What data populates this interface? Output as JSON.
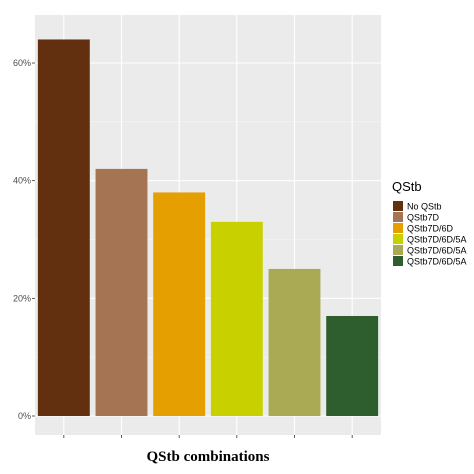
{
  "chart_data": {
    "type": "bar",
    "title": "",
    "xlabel": "QStb combinations",
    "ylabel": "",
    "ylim": [
      0,
      0.7
    ],
    "yticks": [
      0,
      0.2,
      0.4,
      0.6
    ],
    "ytick_labels": [
      "0%",
      "20%",
      "40%",
      "60%"
    ],
    "grid": true,
    "legend_title": "QStb",
    "legend_position": "right",
    "categories": [
      "No QStb",
      "QStb7D",
      "QStb7D/6D",
      "QStb7D/6D/5A",
      "QStb7D/6D/5A",
      "QStb7D/6D/5A"
    ],
    "values": [
      0.64,
      0.42,
      0.38,
      0.33,
      0.25,
      0.17
    ],
    "colors": [
      "#62300f",
      "#a57553",
      "#e69f00",
      "#c9d000",
      "#aaaa55",
      "#2e5e2e"
    ],
    "legend_entries": [
      "No QStb",
      "QStb7D",
      "QStb7D/6D",
      "QStb7D/6D/5A",
      "QStb7D/6D/5A",
      "QStb7D/6D/5A"
    ]
  }
}
